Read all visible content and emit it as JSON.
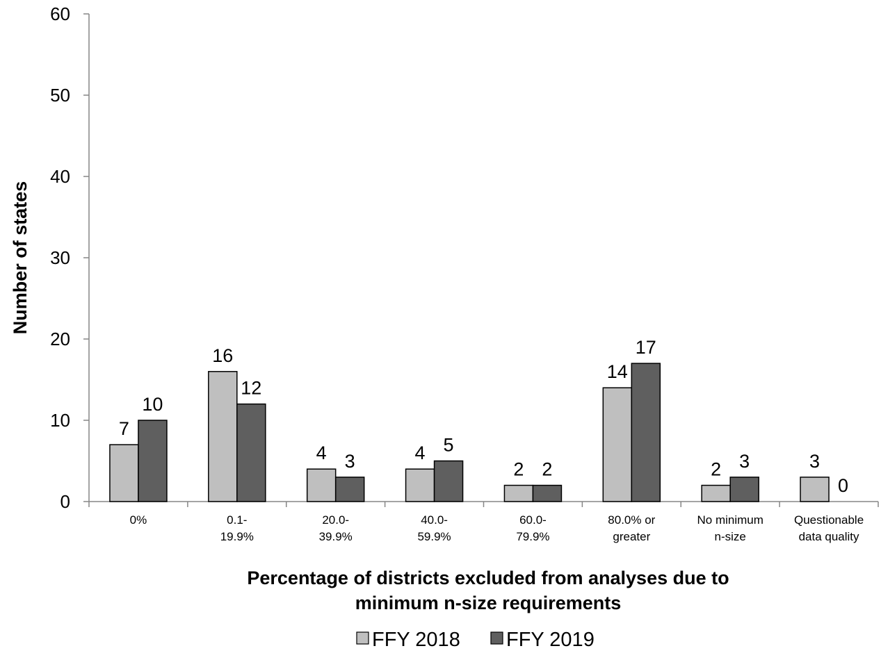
{
  "chart_data": {
    "type": "bar",
    "categories": [
      [
        "0%"
      ],
      [
        "0.1-",
        "19.9%"
      ],
      [
        "20.0-",
        "39.9%"
      ],
      [
        "40.0-",
        "59.9%"
      ],
      [
        "60.0-",
        "79.9%"
      ],
      [
        "80.0% or",
        "greater"
      ],
      [
        "No minimum",
        "n-size"
      ],
      [
        "Questionable",
        "data quality"
      ]
    ],
    "series": [
      {
        "name": "FFY 2018",
        "values": [
          7,
          16,
          4,
          4,
          2,
          14,
          2,
          3
        ],
        "color": "#bfbfbf"
      },
      {
        "name": "FFY 2019",
        "values": [
          10,
          12,
          3,
          5,
          2,
          17,
          3,
          0
        ],
        "color": "#5f5f5f"
      }
    ],
    "xlabel": [
      "Percentage of districts excluded from analyses due to",
      "minimum n-size requirements"
    ],
    "ylabel": "Number of states",
    "ylim": [
      0,
      60
    ],
    "yticks": [
      0,
      10,
      20,
      30,
      40,
      50,
      60
    ],
    "grid": false,
    "legend_position": "bottom"
  }
}
